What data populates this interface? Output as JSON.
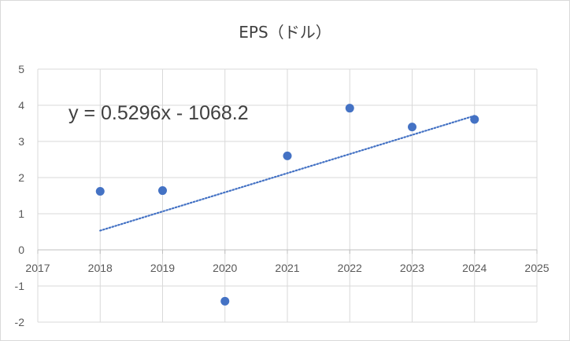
{
  "chart_data": {
    "type": "scatter",
    "title": "EPS（ドル）",
    "xlabel": "",
    "ylabel": "",
    "xlim": [
      2017,
      2025
    ],
    "ylim": [
      -2,
      5
    ],
    "x_ticks": [
      "2017",
      "2018",
      "2019",
      "2020",
      "2021",
      "2022",
      "2023",
      "2024",
      "2025"
    ],
    "y_ticks": [
      "-2",
      "-1",
      "0",
      "1",
      "2",
      "3",
      "4",
      "5"
    ],
    "grid": true,
    "legend": "none",
    "series": [
      {
        "x": [
          2018,
          2019,
          2020,
          2021,
          2022,
          2023,
          2024
        ],
        "y": [
          1.62,
          1.64,
          -1.42,
          2.6,
          3.92,
          3.4,
          3.61
        ],
        "color": "#4472c4"
      }
    ],
    "trendline": {
      "type": "linear",
      "slope": 0.5296,
      "intercept": -1068.2,
      "x_range": [
        2018,
        2024
      ],
      "style": "dotted",
      "color": "#4472c4",
      "equation_label": "y = 0.5296x - 1068.2"
    }
  }
}
